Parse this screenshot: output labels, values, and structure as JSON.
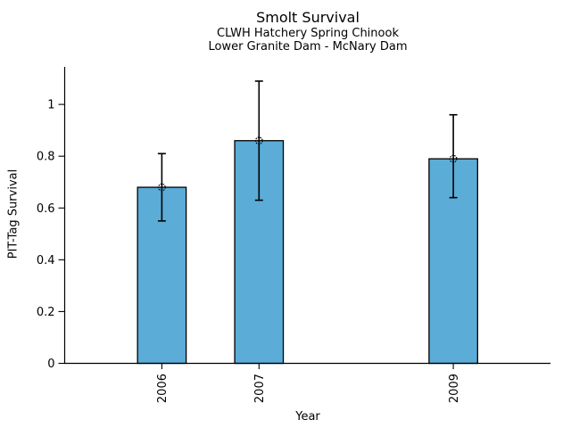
{
  "chart_data": {
    "type": "bar",
    "title": "Smolt Survival",
    "subtitle": [
      "CLWH Hatchery Spring Chinook",
      "Lower Granite Dam - McNary Dam"
    ],
    "xlabel": "Year",
    "ylabel": "PIT-Tag Survival",
    "categories": [
      "2006",
      "2007",
      "2009"
    ],
    "x": [
      2006,
      2007,
      2009
    ],
    "values": [
      0.68,
      0.86,
      0.79
    ],
    "error_low": [
      0.55,
      0.63,
      0.64
    ],
    "error_high": [
      0.81,
      1.09,
      0.96
    ],
    "bar_width_units": 0.5,
    "xlim": [
      2005,
      2010
    ],
    "ylim": [
      0,
      1.145
    ],
    "yticks": [
      0,
      0.2,
      0.4,
      0.6,
      0.8,
      1
    ],
    "ytick_labels": [
      "0",
      "0.2",
      "0.4",
      "0.6",
      "0.8",
      "1"
    ],
    "grid": false,
    "legend": false,
    "marker": "open-circle",
    "bar_color": "#5BACD7",
    "edge_color": "#000000",
    "errorbar_color": "#000000",
    "background_color": "#FFFFFF"
  }
}
